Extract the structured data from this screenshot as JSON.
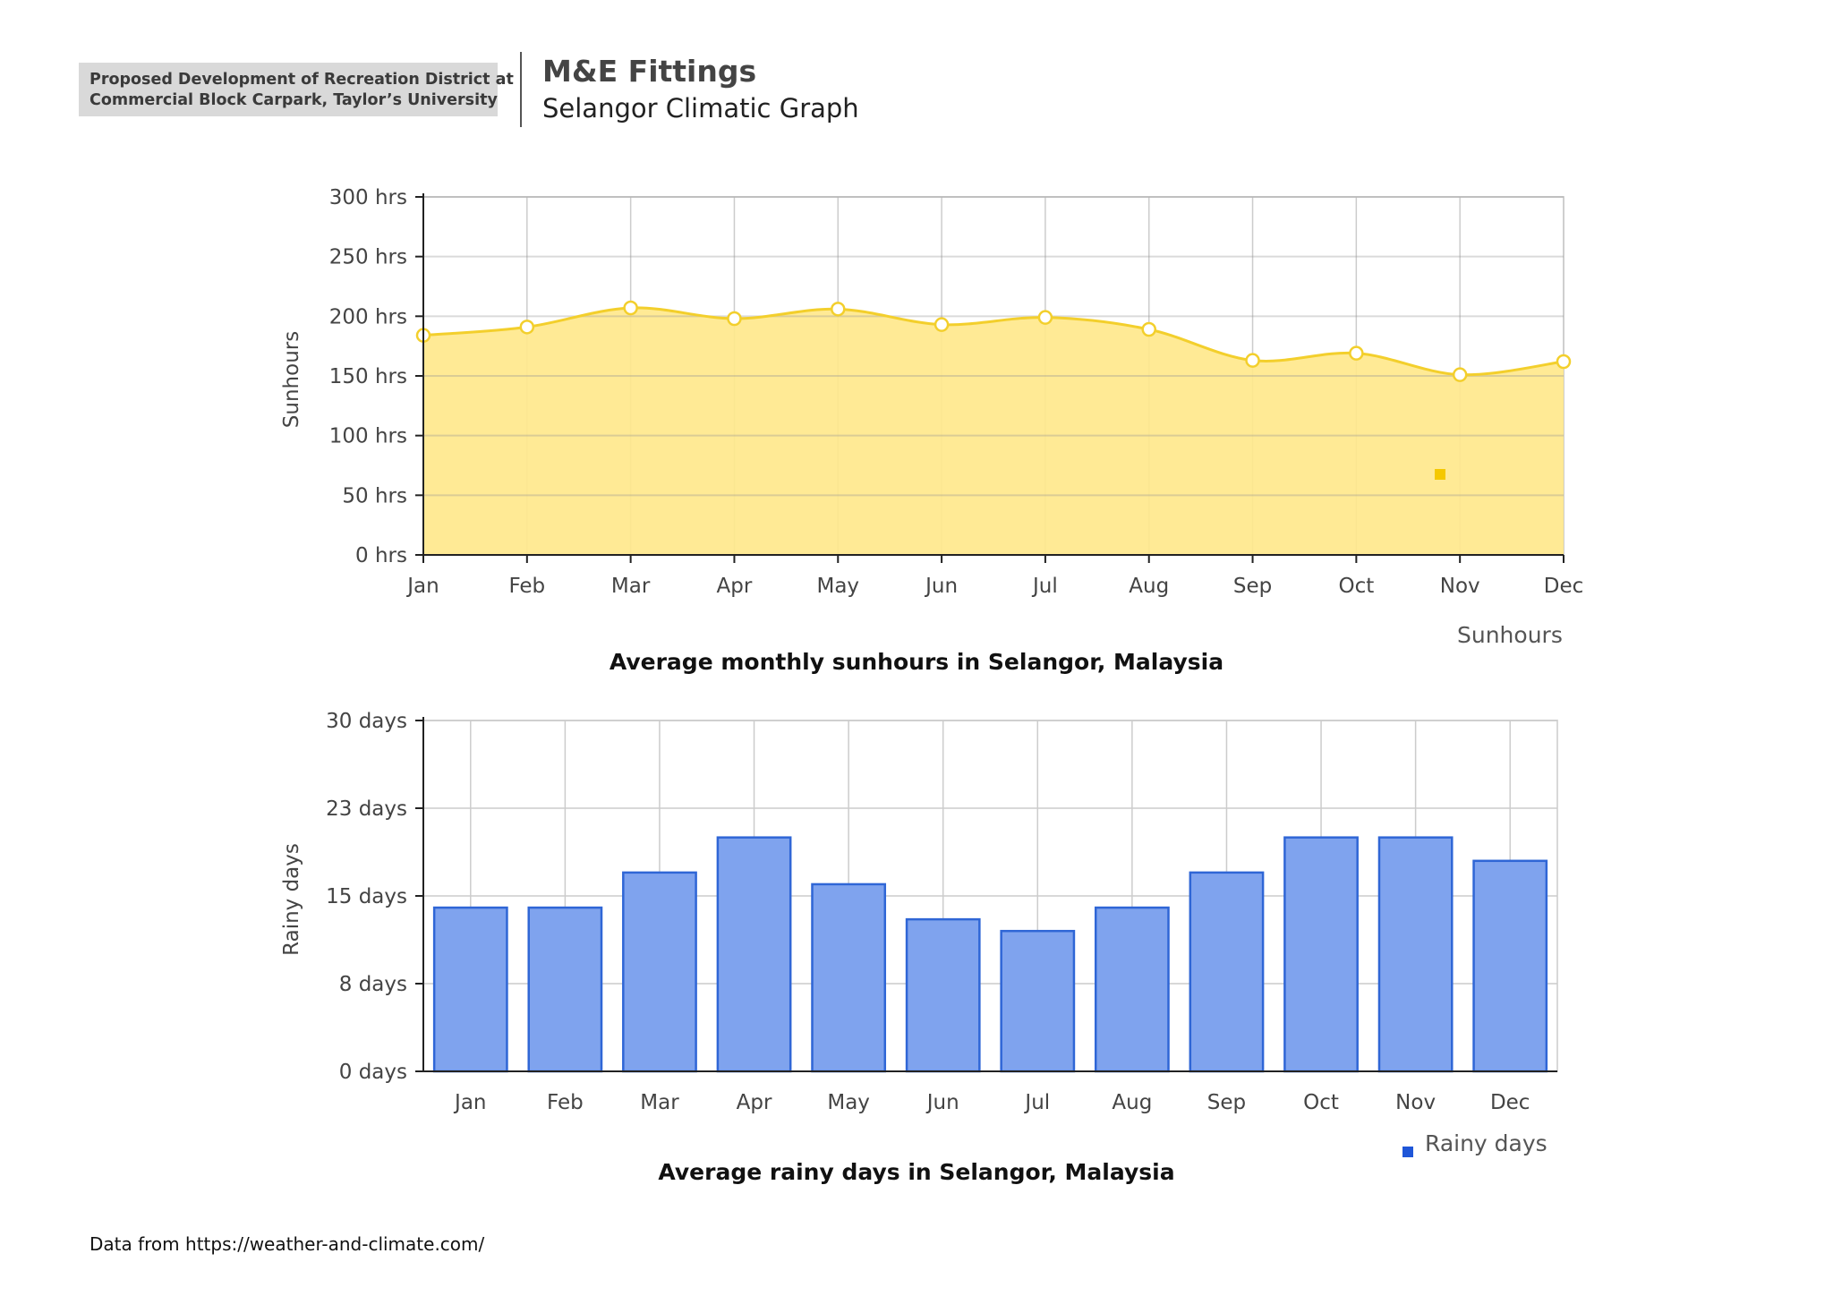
{
  "header": {
    "project_line1": "Proposed Development of Recreation District at",
    "project_line2": "Commercial Block Carpark, Taylor’s University",
    "title": "M&E Fittings",
    "subtitle": "Selangor Climatic Graph"
  },
  "colors": {
    "sun_fill": "#ffe88c",
    "sun_line": "#f3cf2c",
    "sun_legend": "#f5c800",
    "rain_fill": "#7fa3ee",
    "rain_stroke": "#2f66d6",
    "rain_legend": "#1f56d8"
  },
  "chart_data": [
    {
      "type": "area",
      "title": "Average monthly sunhours in Selangor, Malaysia",
      "xlabel": "",
      "ylabel": "Sunhours",
      "categories": [
        "Jan",
        "Feb",
        "Mar",
        "Apr",
        "May",
        "Jun",
        "Jul",
        "Aug",
        "Sep",
        "Oct",
        "Nov",
        "Dec"
      ],
      "ylim": [
        0,
        300
      ],
      "yticks": [
        0,
        50,
        100,
        150,
        200,
        250,
        300
      ],
      "ytick_labels": [
        "0 hrs",
        "50 hrs",
        "100 hrs",
        "150 hrs",
        "200 hrs",
        "250 hrs",
        "300 hrs"
      ],
      "series": [
        {
          "name": "Sunhours",
          "values": [
            184,
            191,
            207,
            198,
            206,
            193,
            199,
            189,
            163,
            169,
            151,
            162
          ]
        }
      ],
      "grid": true,
      "legend": "bottom-right"
    },
    {
      "type": "bar",
      "title": "Average rainy days in Selangor, Malaysia",
      "xlabel": "",
      "ylabel": "Rainy days",
      "categories": [
        "Jan",
        "Feb",
        "Mar",
        "Apr",
        "May",
        "Jun",
        "Jul",
        "Aug",
        "Sep",
        "Oct",
        "Nov",
        "Dec"
      ],
      "ylim": [
        0,
        30
      ],
      "yticks": [
        0,
        7.5,
        15,
        22.5,
        30
      ],
      "ytick_labels": [
        "0 days",
        "8 days",
        "15 days",
        "23 days",
        "30 days"
      ],
      "series": [
        {
          "name": "Rainy days",
          "values": [
            14,
            14,
            17,
            20,
            16,
            13,
            12,
            14,
            17,
            20,
            20,
            18
          ]
        }
      ],
      "grid": true,
      "legend": "bottom-right"
    }
  ],
  "footer": {
    "source": "Data from https://weather-and-climate.com/"
  }
}
